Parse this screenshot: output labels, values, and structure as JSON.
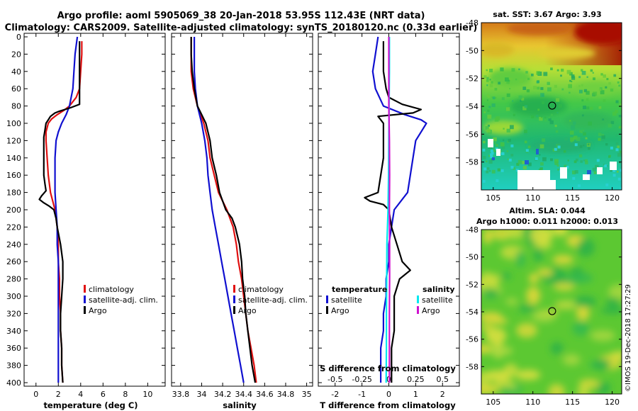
{
  "title": {
    "line1": "Argo profile: aoml 5905069_38 20-Jan-2018 53.95S 112.43E (NRT data)",
    "line2": "Climatology: CARS2009. Satellite-adjusted climatology: synTS_20180120.nc (0.33d earlier)"
  },
  "colors": {
    "climatology": "#e01010",
    "satellite": "#1010d0",
    "argo": "#000000",
    "salinity_satellite": "#00e8f0",
    "salinity_argo": "#d010d0"
  },
  "chart_data": [
    {
      "type": "line",
      "id": "temperature",
      "xlabel": "temperature (deg C)",
      "ylabel": "",
      "xlim": [
        -1,
        11.5
      ],
      "ylim": [
        400,
        0
      ],
      "xticks": [
        "0",
        "2",
        "4",
        "6",
        "8",
        "10"
      ],
      "yticks": [
        "0",
        "20",
        "40",
        "60",
        "80",
        "100",
        "120",
        "140",
        "160",
        "180",
        "200",
        "220",
        "240",
        "260",
        "280",
        "300",
        "320",
        "340",
        "360",
        "380",
        "400"
      ],
      "legend": [
        "climatology",
        "satellite-adj. clim.",
        "Argo"
      ],
      "series": [
        {
          "name": "climatology",
          "color_key": "climatology",
          "depth": [
            5,
            10,
            20,
            40,
            60,
            70,
            80,
            85,
            90,
            95,
            100,
            110,
            120,
            140,
            160,
            180,
            200,
            220,
            240,
            260,
            280,
            300,
            320,
            340,
            360,
            380,
            400
          ],
          "values": [
            4.1,
            4.1,
            4.1,
            4.0,
            3.9,
            3.6,
            3.0,
            2.5,
            1.9,
            1.4,
            1.1,
            0.9,
            0.9,
            1.0,
            1.1,
            1.3,
            1.7,
            1.9,
            2.0,
            2.0,
            2.1,
            2.1,
            2.2,
            2.2,
            2.3,
            2.3,
            2.4
          ]
        },
        {
          "name": "satellite-adj. clim.",
          "color_key": "satellite",
          "depth": [
            0,
            10,
            20,
            40,
            60,
            80,
            90,
            100,
            110,
            120,
            140,
            160,
            180,
            200,
            220,
            240,
            260,
            280,
            300,
            320,
            340,
            360,
            380,
            400
          ],
          "values": [
            3.7,
            3.6,
            3.5,
            3.4,
            3.3,
            3.0,
            2.7,
            2.3,
            2.0,
            1.8,
            1.7,
            1.7,
            1.7,
            1.8,
            1.9,
            1.9,
            2.0,
            2.0,
            2.0,
            2.0,
            2.0,
            2.0,
            2.0,
            2.0
          ]
        },
        {
          "name": "Argo",
          "color_key": "argo",
          "depth": [
            5,
            20,
            40,
            60,
            70,
            78,
            82,
            86,
            88,
            90,
            92,
            96,
            100,
            108,
            116,
            124,
            140,
            160,
            170,
            178,
            184,
            188,
            192,
            196,
            200,
            210,
            220,
            240,
            260,
            280,
            300,
            320,
            340,
            360,
            380,
            400
          ],
          "values": [
            3.9,
            3.9,
            3.9,
            3.9,
            3.9,
            3.9,
            3.1,
            2.1,
            1.7,
            1.5,
            1.3,
            1.1,
            0.9,
            0.8,
            0.7,
            0.7,
            0.7,
            0.7,
            0.8,
            0.9,
            0.5,
            0.3,
            0.7,
            1.2,
            1.6,
            1.8,
            1.9,
            2.2,
            2.4,
            2.4,
            2.3,
            2.2,
            2.2,
            2.3,
            2.3,
            2.4
          ]
        }
      ]
    },
    {
      "type": "line",
      "id": "salinity",
      "xlabel": "salinity",
      "xlim": [
        33.72,
        35.05
      ],
      "ylim": [
        400,
        0
      ],
      "xticks": [
        "33.8",
        "34",
        "34.2",
        "34.4",
        "34.6",
        "34.8",
        "35"
      ],
      "legend": [
        "climatology",
        "satellite-adj. clim.",
        "Argo"
      ],
      "series": [
        {
          "name": "climatology",
          "color_key": "climatology",
          "depth": [
            0,
            20,
            40,
            60,
            80,
            100,
            120,
            140,
            160,
            180,
            200,
            220,
            240,
            260,
            280,
            300,
            320,
            340,
            360,
            380,
            400
          ],
          "values": [
            33.9,
            33.9,
            33.9,
            33.92,
            33.96,
            34.02,
            34.06,
            34.08,
            34.12,
            34.16,
            34.24,
            34.3,
            34.33,
            34.35,
            34.38,
            34.4,
            34.42,
            34.44,
            34.47,
            34.5,
            34.52
          ]
        },
        {
          "name": "satellite-adj. clim.",
          "color_key": "satellite",
          "depth": [
            0,
            20,
            40,
            60,
            80,
            100,
            120,
            140,
            160,
            180,
            200,
            220,
            240,
            260,
            280,
            300,
            320,
            340,
            360,
            380,
            400
          ],
          "values": [
            33.93,
            33.93,
            33.93,
            33.94,
            33.96,
            34.0,
            34.03,
            34.05,
            34.06,
            34.08,
            34.1,
            34.13,
            34.16,
            34.19,
            34.22,
            34.25,
            34.28,
            34.31,
            34.34,
            34.37,
            34.4
          ]
        },
        {
          "name": "Argo",
          "color_key": "argo",
          "depth": [
            0,
            20,
            40,
            60,
            80,
            90,
            100,
            120,
            140,
            160,
            180,
            200,
            210,
            220,
            240,
            260,
            280,
            300,
            320,
            340,
            360,
            380,
            400
          ],
          "values": [
            33.9,
            33.9,
            33.91,
            33.93,
            33.96,
            34.0,
            34.04,
            34.08,
            34.1,
            34.14,
            34.17,
            34.23,
            34.29,
            34.32,
            34.36,
            34.38,
            34.39,
            34.41,
            34.42,
            34.44,
            34.46,
            34.48,
            34.51
          ]
        }
      ]
    },
    {
      "type": "line",
      "id": "differences",
      "xlabel": "T difference from climatology",
      "xlabel_top": "S difference from climatology",
      "xlim": [
        -2.6,
        2.6
      ],
      "ylim": [
        400,
        0
      ],
      "xticks": [
        "-2",
        "-1",
        "0",
        "1",
        "2"
      ],
      "s_xticks": [
        "-0.5",
        "-0.25",
        "0",
        "0.25",
        "0.5"
      ],
      "legend_temperature": {
        "heading": "temperature",
        "items": [
          "satellite",
          "Argo"
        ]
      },
      "legend_salinity": {
        "heading": "salinity",
        "items": [
          "satellite",
          "Argo"
        ]
      },
      "series": [
        {
          "name": "temperature satellite",
          "color_key": "satellite",
          "depth": [
            0,
            20,
            40,
            60,
            80,
            90,
            96,
            100,
            110,
            120,
            140,
            160,
            180,
            200,
            220,
            240,
            260,
            280,
            300,
            320,
            340,
            360,
            380,
            400
          ],
          "values": [
            -0.4,
            -0.5,
            -0.6,
            -0.5,
            -0.2,
            0.6,
            1.2,
            1.4,
            1.2,
            1.0,
            0.9,
            0.8,
            0.7,
            0.2,
            0.1,
            0.0,
            0.0,
            -0.1,
            -0.1,
            -0.2,
            -0.2,
            -0.3,
            -0.3,
            -0.3
          ]
        },
        {
          "name": "temperature Argo",
          "color_key": "argo",
          "depth": [
            5,
            20,
            40,
            60,
            70,
            78,
            84,
            88,
            92,
            100,
            110,
            120,
            140,
            160,
            180,
            186,
            190,
            194,
            200,
            220,
            240,
            260,
            270,
            280,
            300,
            320,
            340,
            360,
            380,
            400
          ],
          "values": [
            -0.2,
            -0.2,
            -0.2,
            -0.1,
            0.0,
            0.5,
            1.2,
            0.9,
            -0.4,
            -0.2,
            -0.2,
            -0.2,
            -0.2,
            -0.3,
            -0.4,
            -0.9,
            -0.7,
            -0.2,
            0.0,
            0.1,
            0.3,
            0.5,
            0.8,
            0.4,
            0.2,
            0.2,
            0.2,
            0.1,
            0.1,
            0.1
          ]
        },
        {
          "name": "salinity satellite",
          "color_key": "salinity_satellite",
          "depth": [
            0,
            40,
            80,
            120,
            160,
            200,
            240,
            280,
            320,
            360,
            400
          ],
          "values": [
            0.02,
            0.02,
            0.01,
            0.0,
            -0.01,
            -0.03,
            -0.07,
            -0.08,
            -0.09,
            -0.09,
            -0.1
          ]
        },
        {
          "name": "salinity Argo",
          "color_key": "salinity_argo",
          "depth": [
            0,
            40,
            80,
            120,
            160,
            200,
            240,
            280,
            320,
            360,
            400
          ],
          "values": [
            0.0,
            0.0,
            0.0,
            0.02,
            0.03,
            0.02,
            0.03,
            0.03,
            0.02,
            0.02,
            0.02
          ]
        }
      ]
    },
    {
      "type": "heatmap",
      "id": "sst_map",
      "title": "sat. SST: 3.67 Argo: 3.93",
      "xticks": [
        "105",
        "110",
        "115",
        "120"
      ],
      "yticks": [
        "-48",
        "-50",
        "-52",
        "-54",
        "-56",
        "-58"
      ],
      "xlim": [
        103.5,
        121.2
      ],
      "ylim": [
        -60,
        -48
      ],
      "marker": {
        "lon": 112.43,
        "lat": -53.95
      }
    },
    {
      "type": "heatmap",
      "id": "sla_map",
      "title": "Altim. SLA: 0.044",
      "subtitle": "Argo h1000: 0.011 h2000: 0.013",
      "xticks": [
        "105",
        "110",
        "115",
        "120"
      ],
      "yticks": [
        "-48",
        "-50",
        "-52",
        "-54",
        "-56",
        "-58"
      ],
      "xlim": [
        103.5,
        121.2
      ],
      "ylim": [
        -60,
        -48
      ],
      "marker": {
        "lon": 112.43,
        "lat": -53.95
      }
    }
  ],
  "credit": "©IMOS 19-Dec-2018 17:27:29"
}
